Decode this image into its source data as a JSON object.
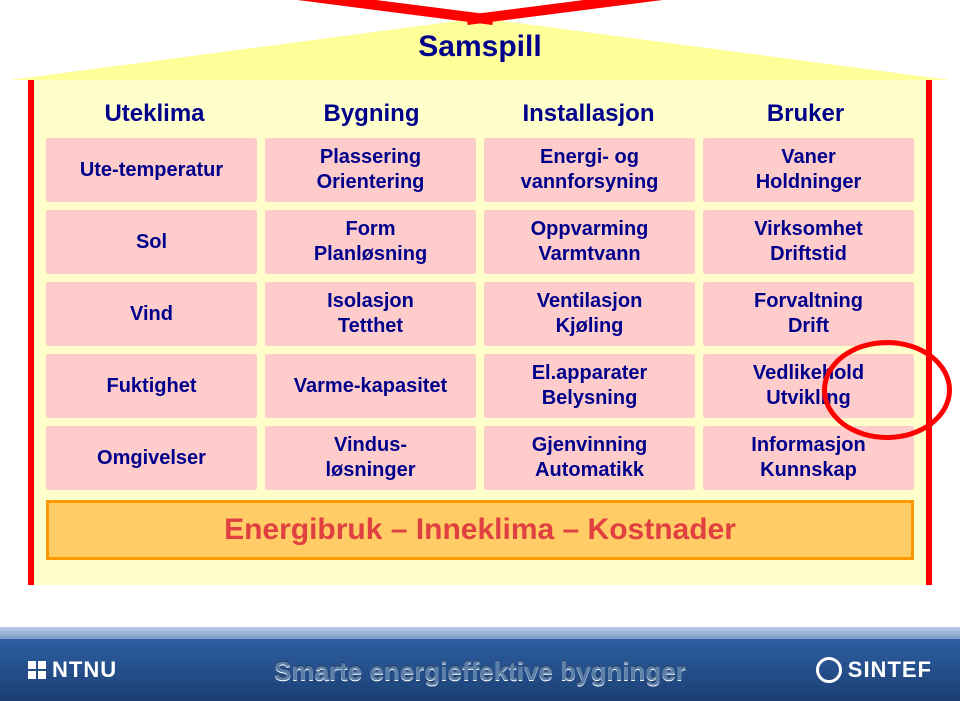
{
  "title": "Samspill",
  "headers": [
    "Uteklima",
    "Bygning",
    "Installasjon",
    "Bruker"
  ],
  "rows": [
    [
      {
        "lines": [
          "Ute-temperatur"
        ]
      },
      {
        "lines": [
          "Plassering",
          "Orientering"
        ]
      },
      {
        "lines": [
          "Energi- og",
          "vannforsyning"
        ]
      },
      {
        "lines": [
          "Vaner",
          "Holdninger"
        ]
      }
    ],
    [
      {
        "lines": [
          "Sol"
        ]
      },
      {
        "lines": [
          "Form",
          "Planløsning"
        ]
      },
      {
        "lines": [
          "Oppvarming",
          "Varmtvann"
        ]
      },
      {
        "lines": [
          "Virksomhet",
          "Driftstid"
        ]
      }
    ],
    [
      {
        "lines": [
          "Vind"
        ]
      },
      {
        "lines": [
          "Isolasjon",
          "Tetthet"
        ]
      },
      {
        "lines": [
          "Ventilasjon",
          "Kjøling"
        ]
      },
      {
        "lines": [
          "Forvaltning",
          "Drift"
        ]
      }
    ],
    [
      {
        "lines": [
          "Fuktighet"
        ]
      },
      {
        "lines": [
          "Varme-kapasitet"
        ]
      },
      {
        "lines": [
          "El.apparater",
          "Belysning"
        ]
      },
      {
        "lines": [
          "Vedlikehold",
          "Utvikling"
        ]
      }
    ],
    [
      {
        "lines": [
          "Omgivelser"
        ]
      },
      {
        "lines": [
          "Vindus-",
          "løsninger"
        ]
      },
      {
        "lines": [
          "Gjenvinning",
          "Automatikk"
        ]
      },
      {
        "lines": [
          "Informasjon",
          "Kunnskap"
        ]
      }
    ]
  ],
  "footer_bar": "Energibruk – Inneklima – Kostnader",
  "subtitle": "Smarte energieffektive bygninger",
  "logo_left": "NTNU",
  "logo_right": "SINTEF",
  "colors": {
    "roof_fill": "#ffff99",
    "roof_edge": "#ff0000",
    "body_fill": "#ffffcc",
    "cell_fill": "#ffcccc",
    "cell_text": "#00008b",
    "header_text": "#00008b",
    "footer_fill": "#ffcc66",
    "footer_border": "#ff9900",
    "footer_text": "#e04040",
    "circle": "#ff0000",
    "band_top": "#2d5fa3",
    "band_bottom": "#1c3f73"
  },
  "highlight_circle": {
    "row": 2,
    "col": 3
  }
}
